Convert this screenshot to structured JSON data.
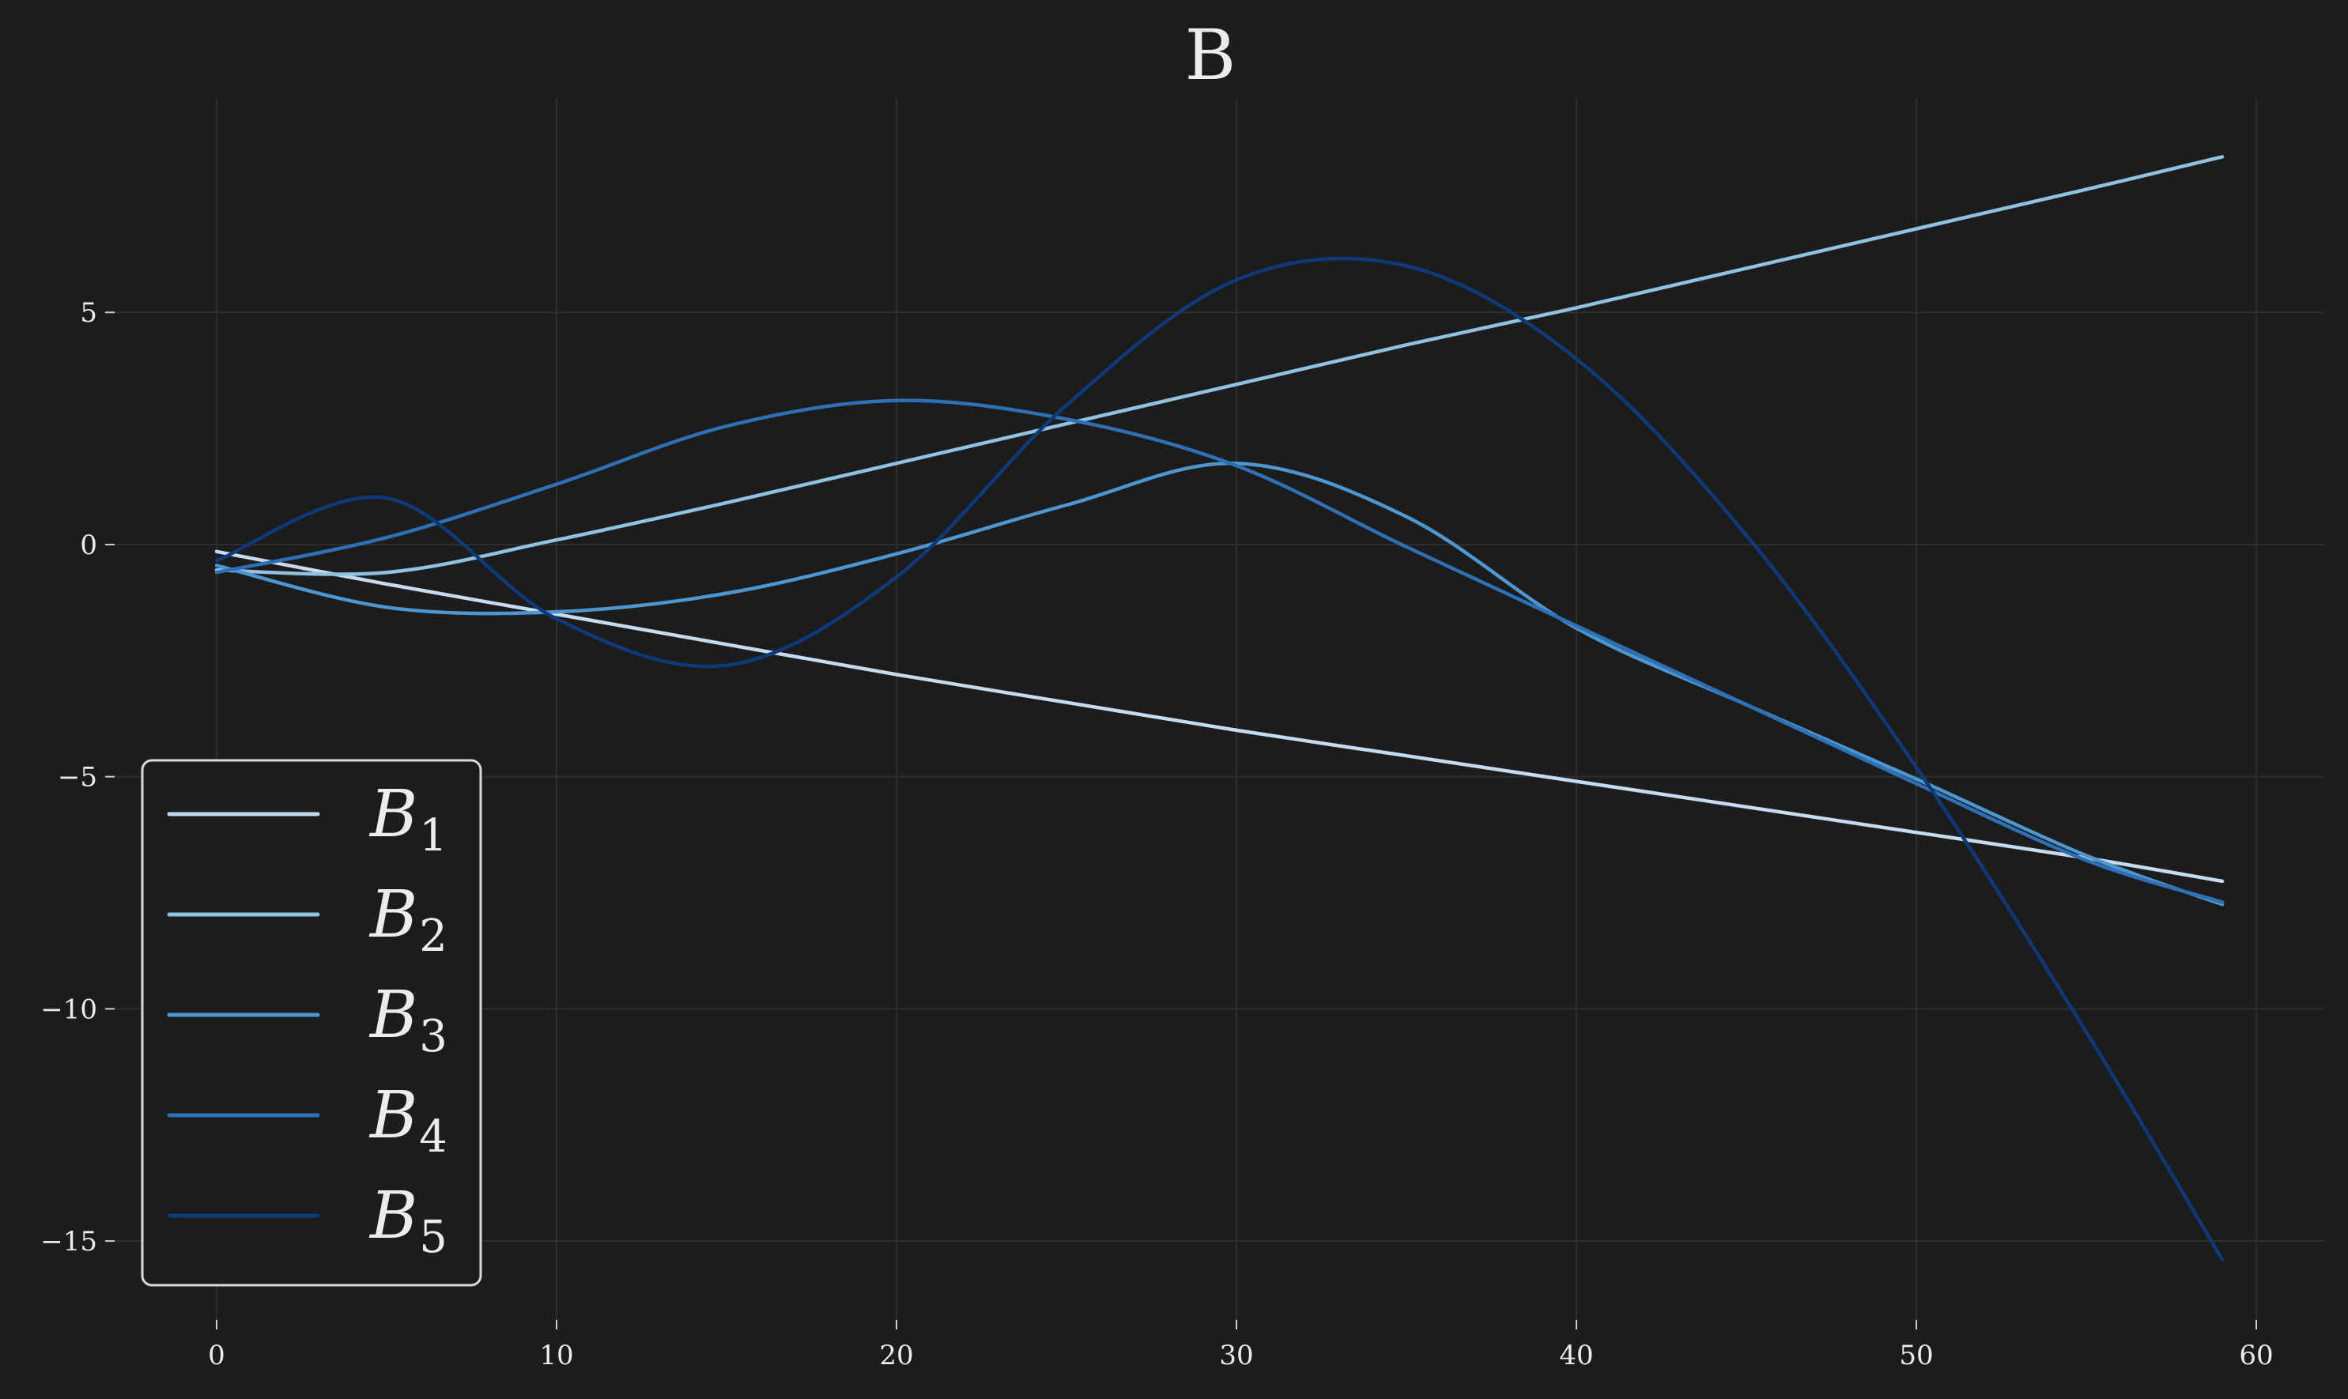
{
  "chart_data": {
    "type": "line",
    "title": "B",
    "xlabel": "",
    "ylabel": "",
    "xlim": [
      -3,
      62
    ],
    "ylim": [
      -16.7,
      9.6
    ],
    "xticks": [
      0,
      10,
      20,
      30,
      40,
      50,
      60
    ],
    "xtick_labels": [
      "0",
      "10",
      "20",
      "30",
      "40",
      "50",
      "60"
    ],
    "yticks": [
      5,
      0,
      -5,
      -10,
      -15
    ],
    "ytick_labels": [
      "5",
      "0",
      "−5",
      "−10",
      "−15"
    ],
    "grid": true,
    "legend_position": "lower-left",
    "x": [
      0,
      5,
      10,
      15,
      20,
      25,
      30,
      35,
      40,
      45,
      50,
      55,
      59
    ],
    "series": [
      {
        "name": "B",
        "subscript": "1",
        "color": "#c6dbef",
        "values": [
          -0.15,
          -0.85,
          -1.5,
          -2.15,
          -2.8,
          -3.4,
          -4.0,
          -4.55,
          -5.1,
          -5.65,
          -6.2,
          -6.75,
          -7.25
        ]
      },
      {
        "name": "B",
        "subscript": "2",
        "color": "#8fc1e0",
        "values": [
          -0.55,
          -0.6,
          0.1,
          0.9,
          1.75,
          2.6,
          3.45,
          4.3,
          5.1,
          5.95,
          6.8,
          7.65,
          8.35
        ]
      },
      {
        "name": "B",
        "subscript": "3",
        "color": "#4d96cf",
        "values": [
          -0.45,
          -1.35,
          -1.45,
          -1.05,
          -0.2,
          0.85,
          1.75,
          0.6,
          -1.8,
          -3.45,
          -5.05,
          -6.7,
          -7.75
        ]
      },
      {
        "name": "B",
        "subscript": "4",
        "color": "#2d70b5",
        "values": [
          -0.6,
          0.15,
          1.3,
          2.55,
          3.1,
          2.7,
          1.7,
          -0.05,
          -1.75,
          -3.45,
          -5.15,
          -6.8,
          -7.7
        ]
      },
      {
        "name": "B",
        "subscript": "5",
        "color": "#0e3a7a",
        "values": [
          -0.35,
          1.0,
          -1.6,
          -2.6,
          -0.7,
          3.0,
          5.7,
          6.0,
          4.0,
          0.2,
          -4.8,
          -10.5,
          -15.4
        ]
      }
    ]
  }
}
